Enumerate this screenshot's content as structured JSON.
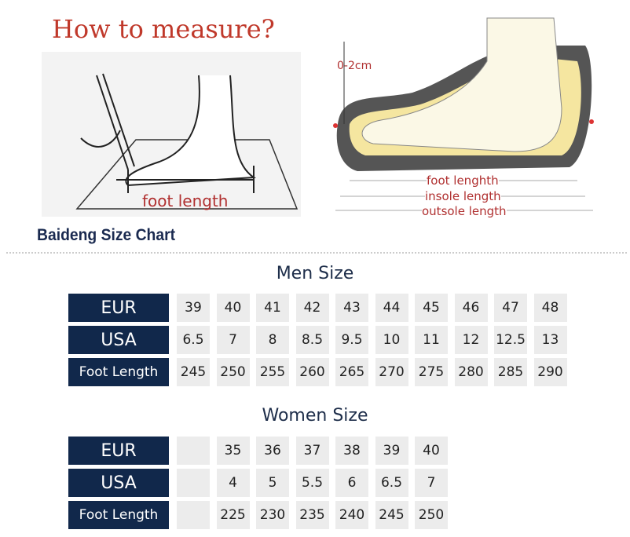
{
  "title": "How to measure?",
  "illustration": {
    "left_label": "foot length",
    "tolerance": "0-2cm",
    "lines": [
      "foot lenghth",
      "insole length",
      "outsole length"
    ]
  },
  "brand": "Baideng Size Chart",
  "men": {
    "title": "Men Size",
    "labels": [
      "EUR",
      "USA",
      "Foot Length"
    ],
    "rows": [
      [
        "39",
        "40",
        "41",
        "42",
        "43",
        "44",
        "45",
        "46",
        "47",
        "48"
      ],
      [
        "6.5",
        "7",
        "8",
        "8.5",
        "9.5",
        "10",
        "11",
        "12",
        "12.5",
        "13"
      ],
      [
        "245",
        "250",
        "255",
        "260",
        "265",
        "270",
        "275",
        "280",
        "285",
        "290"
      ]
    ]
  },
  "women": {
    "title": "Women Size",
    "labels": [
      "EUR",
      "USA",
      "Foot Length"
    ],
    "rows": [
      [
        "",
        "35",
        "36",
        "37",
        "38",
        "39",
        "40"
      ],
      [
        "",
        "4",
        "5",
        "5.5",
        "6",
        "6.5",
        "7"
      ],
      [
        "",
        "225",
        "230",
        "235",
        "240",
        "245",
        "250"
      ]
    ]
  },
  "colors": {
    "label_bg": "#11284b",
    "cell_bg": "#ececec",
    "title": "#c0392b"
  }
}
